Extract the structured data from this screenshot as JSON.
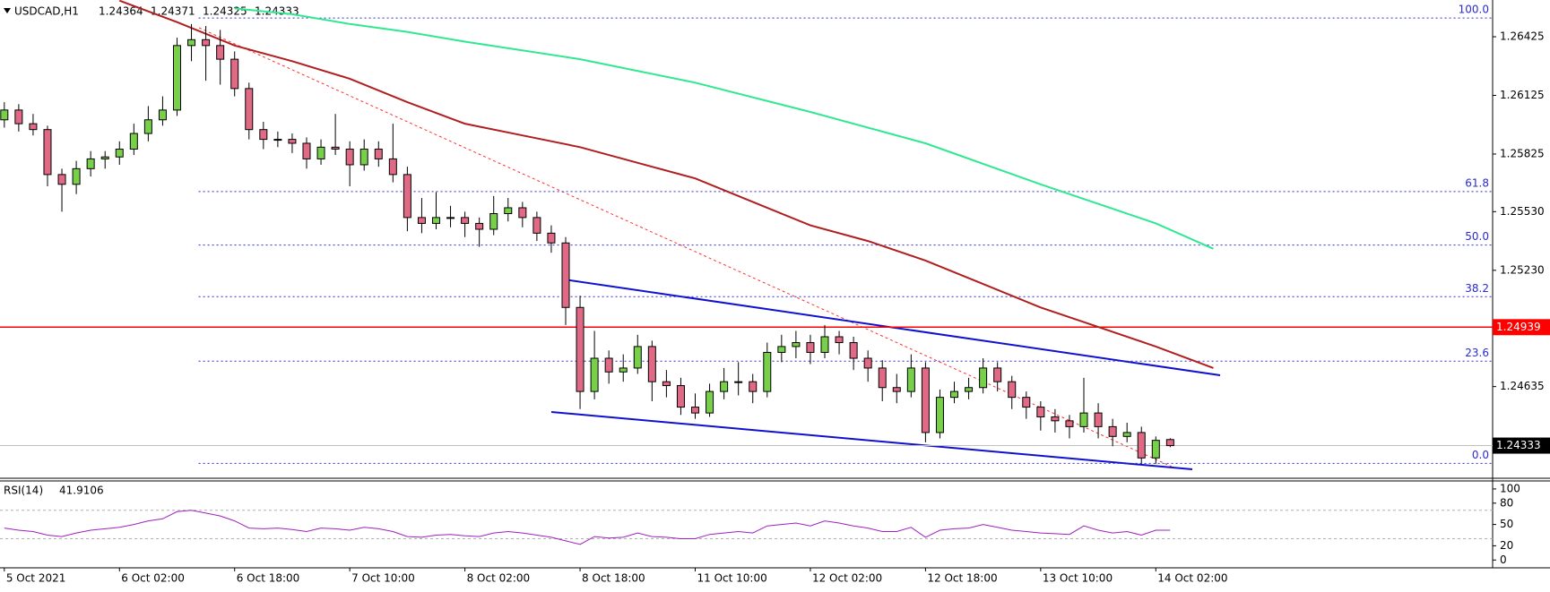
{
  "chart_data": {
    "type": "candlestick",
    "title": "USDCAD,H1",
    "colors": {
      "up": "#78d04a",
      "down": "#e06a86",
      "outline": "#000000"
    },
    "candles": [
      [
        1.26,
        1.2609,
        1.2596,
        1.2605
      ],
      [
        1.2605,
        1.2608,
        1.2594,
        1.2598
      ],
      [
        1.2598,
        1.2603,
        1.2592,
        1.2595
      ],
      [
        1.2595,
        1.2597,
        1.2566,
        1.2572
      ],
      [
        1.2572,
        1.2575,
        1.2553,
        1.2567
      ],
      [
        1.2567,
        1.2579,
        1.2562,
        1.2575
      ],
      [
        1.2575,
        1.2584,
        1.2571,
        1.258
      ],
      [
        1.258,
        1.2584,
        1.2575,
        1.2581
      ],
      [
        1.2581,
        1.2589,
        1.2577,
        1.2585
      ],
      [
        1.2585,
        1.2598,
        1.2582,
        1.2593
      ],
      [
        1.2593,
        1.2607,
        1.2589,
        1.26
      ],
      [
        1.26,
        1.2612,
        1.2597,
        1.2605
      ],
      [
        1.2605,
        1.2642,
        1.2602,
        1.2638
      ],
      [
        1.2638,
        1.2649,
        1.263,
        1.2641
      ],
      [
        1.2641,
        1.2648,
        1.262,
        1.2638
      ],
      [
        1.2638,
        1.2646,
        1.2618,
        1.2631
      ],
      [
        1.2631,
        1.2635,
        1.2612,
        1.2616
      ],
      [
        1.2616,
        1.2619,
        1.259,
        1.2595
      ],
      [
        1.2595,
        1.2599,
        1.2585,
        1.259
      ],
      [
        1.259,
        1.2594,
        1.2586,
        1.259
      ],
      [
        1.259,
        1.2593,
        1.2583,
        1.2588
      ],
      [
        1.2588,
        1.2591,
        1.2575,
        1.258
      ],
      [
        1.258,
        1.259,
        1.2577,
        1.2586
      ],
      [
        1.2586,
        1.2603,
        1.2582,
        1.2585
      ],
      [
        1.2585,
        1.2589,
        1.2566,
        1.2577
      ],
      [
        1.2577,
        1.259,
        1.2574,
        1.2585
      ],
      [
        1.2585,
        1.2589,
        1.2576,
        1.258
      ],
      [
        1.258,
        1.2598,
        1.2568,
        1.2572
      ],
      [
        1.2572,
        1.2576,
        1.2543,
        1.255
      ],
      [
        1.255,
        1.256,
        1.2542,
        1.2547
      ],
      [
        1.2547,
        1.2563,
        1.2544,
        1.255
      ],
      [
        1.255,
        1.2556,
        1.2545,
        1.255
      ],
      [
        1.255,
        1.2553,
        1.254,
        1.2547
      ],
      [
        1.2547,
        1.255,
        1.2535,
        1.2544
      ],
      [
        1.2544,
        1.2561,
        1.2541,
        1.2552
      ],
      [
        1.2552,
        1.256,
        1.2548,
        1.2555
      ],
      [
        1.2555,
        1.2558,
        1.2545,
        1.255
      ],
      [
        1.255,
        1.2553,
        1.2538,
        1.2542
      ],
      [
        1.2542,
        1.2546,
        1.2532,
        1.2537
      ],
      [
        1.2537,
        1.254,
        1.2495,
        1.2504
      ],
      [
        1.2504,
        1.251,
        1.2452,
        1.2461
      ],
      [
        1.2461,
        1.2492,
        1.2457,
        1.2478
      ],
      [
        1.2478,
        1.2482,
        1.2465,
        1.2471
      ],
      [
        1.2471,
        1.248,
        1.2466,
        1.2473
      ],
      [
        1.2473,
        1.249,
        1.247,
        1.2484
      ],
      [
        1.2484,
        1.2487,
        1.2456,
        1.2466
      ],
      [
        1.2466,
        1.2472,
        1.2458,
        1.2464
      ],
      [
        1.2464,
        1.2468,
        1.2449,
        1.2453
      ],
      [
        1.2453,
        1.246,
        1.2447,
        1.245
      ],
      [
        1.245,
        1.2465,
        1.2448,
        1.2461
      ],
      [
        1.2461,
        1.2473,
        1.2457,
        1.2466
      ],
      [
        1.2466,
        1.2476,
        1.2459,
        1.2466
      ],
      [
        1.2466,
        1.247,
        1.2455,
        1.2461
      ],
      [
        1.2461,
        1.2486,
        1.2458,
        1.2481
      ],
      [
        1.2481,
        1.249,
        1.2476,
        1.2484
      ],
      [
        1.2484,
        1.2492,
        1.2478,
        1.2486
      ],
      [
        1.2486,
        1.249,
        1.2475,
        1.2481
      ],
      [
        1.2481,
        1.2495,
        1.2478,
        1.2489
      ],
      [
        1.2489,
        1.2492,
        1.248,
        1.2486
      ],
      [
        1.2486,
        1.2489,
        1.2472,
        1.2478
      ],
      [
        1.2478,
        1.2482,
        1.2466,
        1.2473
      ],
      [
        1.2473,
        1.2477,
        1.2456,
        1.2463
      ],
      [
        1.2463,
        1.247,
        1.2455,
        1.2461
      ],
      [
        1.2461,
        1.248,
        1.2458,
        1.2473
      ],
      [
        1.2473,
        1.2476,
        1.2435,
        1.244
      ],
      [
        1.244,
        1.2462,
        1.2437,
        1.2458
      ],
      [
        1.2458,
        1.2466,
        1.2455,
        1.2461
      ],
      [
        1.2461,
        1.2468,
        1.2457,
        1.2463
      ],
      [
        1.2463,
        1.2478,
        1.246,
        1.2473
      ],
      [
        1.2473,
        1.2476,
        1.2461,
        1.2466
      ],
      [
        1.2466,
        1.2469,
        1.2452,
        1.2458
      ],
      [
        1.2458,
        1.2461,
        1.2447,
        1.2453
      ],
      [
        1.2453,
        1.2456,
        1.2441,
        1.2448
      ],
      [
        1.2448,
        1.2452,
        1.244,
        1.2446
      ],
      [
        1.2446,
        1.2449,
        1.2437,
        1.2443
      ],
      [
        1.2443,
        1.2468,
        1.244,
        1.245
      ],
      [
        1.245,
        1.2455,
        1.2437,
        1.2443
      ],
      [
        1.2443,
        1.2447,
        1.2433,
        1.2438
      ],
      [
        1.2438,
        1.2445,
        1.2435,
        1.244
      ],
      [
        1.244,
        1.2443,
        1.2424,
        1.2427
      ],
      [
        1.2427,
        1.2438,
        1.2424,
        1.2436
      ],
      [
        1.24364,
        1.24371,
        1.24325,
        1.24333
      ]
    ],
    "xlim": [
      -0.3,
      103.4
    ],
    "ylim": [
      1.24166,
      1.26613
    ],
    "yticks": [
      1.26425,
      1.26125,
      1.25825,
      {
        "value": 1.2553,
        "label": "1.25530"
      },
      {
        "value": 1.2523,
        "label": "1.25230"
      },
      1.24635
    ],
    "xticks": [
      {
        "value": 0,
        "label": "5 Oct 2021"
      },
      {
        "value": 8,
        "label": "6 Oct 02:00"
      },
      {
        "value": 16,
        "label": "6 Oct 18:00"
      },
      {
        "value": 24,
        "label": "7 Oct 10:00"
      },
      {
        "value": 32,
        "label": "8 Oct 02:00"
      },
      {
        "value": 40,
        "label": "8 Oct 18:00"
      },
      {
        "value": 48,
        "label": "11 Oct 10:00"
      },
      {
        "value": 56,
        "label": "12 Oct 02:00"
      },
      {
        "value": 64,
        "label": "12 Oct 18:00"
      },
      {
        "value": 72,
        "label": "13 Oct 10:00"
      },
      {
        "value": 80,
        "label": "14 Oct 02:00"
      }
    ],
    "moving_averages": [
      {
        "color": "#b01e1e",
        "x": [
          8,
          12,
          16,
          20,
          24,
          28,
          32,
          36,
          40,
          44,
          48,
          52,
          56,
          60,
          64,
          68,
          72,
          76,
          80,
          84
        ],
        "values": [
          1.2661,
          1.265,
          1.2638,
          1.263,
          1.2621,
          1.2609,
          1.2598,
          1.2592,
          1.2586,
          1.2578,
          1.257,
          1.2558,
          1.2546,
          1.2538,
          1.2528,
          1.2516,
          1.2504,
          1.2494,
          1.2484,
          1.2473
        ]
      },
      {
        "color": "#30e890",
        "x": [
          16,
          20,
          24,
          28,
          32,
          40,
          48,
          56,
          64,
          72,
          80,
          84
        ],
        "values": [
          1.2657,
          1.2654,
          1.2649,
          1.2645,
          1.264,
          1.2631,
          1.2619,
          1.2604,
          1.2588,
          1.2567,
          1.2547,
          1.2534
        ]
      }
    ],
    "level_line": {
      "value": 1.24939,
      "color": "#ff0000"
    },
    "fibonacci": {
      "color": "#2a2ad0",
      "levels": [
        {
          "label": "100.0",
          "value": 1.26521
        },
        {
          "label": "61.8",
          "value": 1.25633
        },
        {
          "label": "50.0",
          "value": 1.25359
        },
        {
          "label": "38.2",
          "value": 1.25095
        },
        {
          "label": "23.6",
          "value": 1.24765
        },
        {
          "label": "0.0",
          "value": 1.24242
        }
      ]
    },
    "rsi": {
      "title": "RSI(14)",
      "color": "#a020c0",
      "ylim": [
        -11,
        110
      ],
      "yticks": [
        100,
        80,
        50,
        20,
        0
      ],
      "levels": [
        70,
        30
      ],
      "values": [
        45,
        42,
        40,
        35,
        33,
        38,
        42,
        44,
        46,
        50,
        55,
        58,
        68,
        70,
        66,
        62,
        55,
        45,
        44,
        45,
        43,
        40,
        45,
        44,
        42,
        46,
        44,
        40,
        33,
        32,
        35,
        36,
        34,
        33,
        38,
        40,
        38,
        35,
        32,
        27,
        22,
        33,
        31,
        32,
        38,
        33,
        32,
        30,
        30,
        36,
        38,
        40,
        38,
        48,
        50,
        52,
        48,
        55,
        52,
        48,
        45,
        40,
        40,
        46,
        32,
        42,
        44,
        45,
        50,
        46,
        42,
        40,
        38,
        37,
        36,
        48,
        42,
        38,
        40,
        35,
        42,
        41.9106
      ]
    }
  }
}
